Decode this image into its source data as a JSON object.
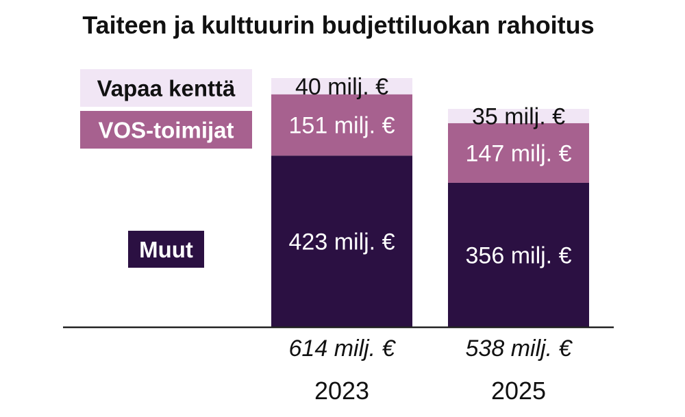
{
  "chart_data": {
    "type": "bar",
    "stacked": true,
    "title": "Taiteen ja kulttuurin budjettiluokan rahoitus",
    "categories": [
      "2023",
      "2025"
    ],
    "series": [
      {
        "name": "Muut",
        "values": [
          423,
          356
        ],
        "labels": [
          "423 milj. €",
          "356 milj. €"
        ],
        "color": "#2b1042",
        "text_color": "#ffffff"
      },
      {
        "name": "VOS-toimijat",
        "values": [
          151,
          147
        ],
        "labels": [
          "151 milj. €",
          "147 milj. €"
        ],
        "color": "#a7618f",
        "text_color": "#ffffff"
      },
      {
        "name": "Vapaa kenttä",
        "values": [
          40,
          35
        ],
        "labels": [
          "40 milj. €",
          "35 milj. €"
        ],
        "color": "#f1e6f5",
        "text_color": "#111111"
      }
    ],
    "totals": [
      614,
      538
    ],
    "total_labels": [
      "614 milj. €",
      "538 milj. €"
    ],
    "ylim": [
      0,
      614
    ],
    "grid": false,
    "legend_position": "left"
  }
}
